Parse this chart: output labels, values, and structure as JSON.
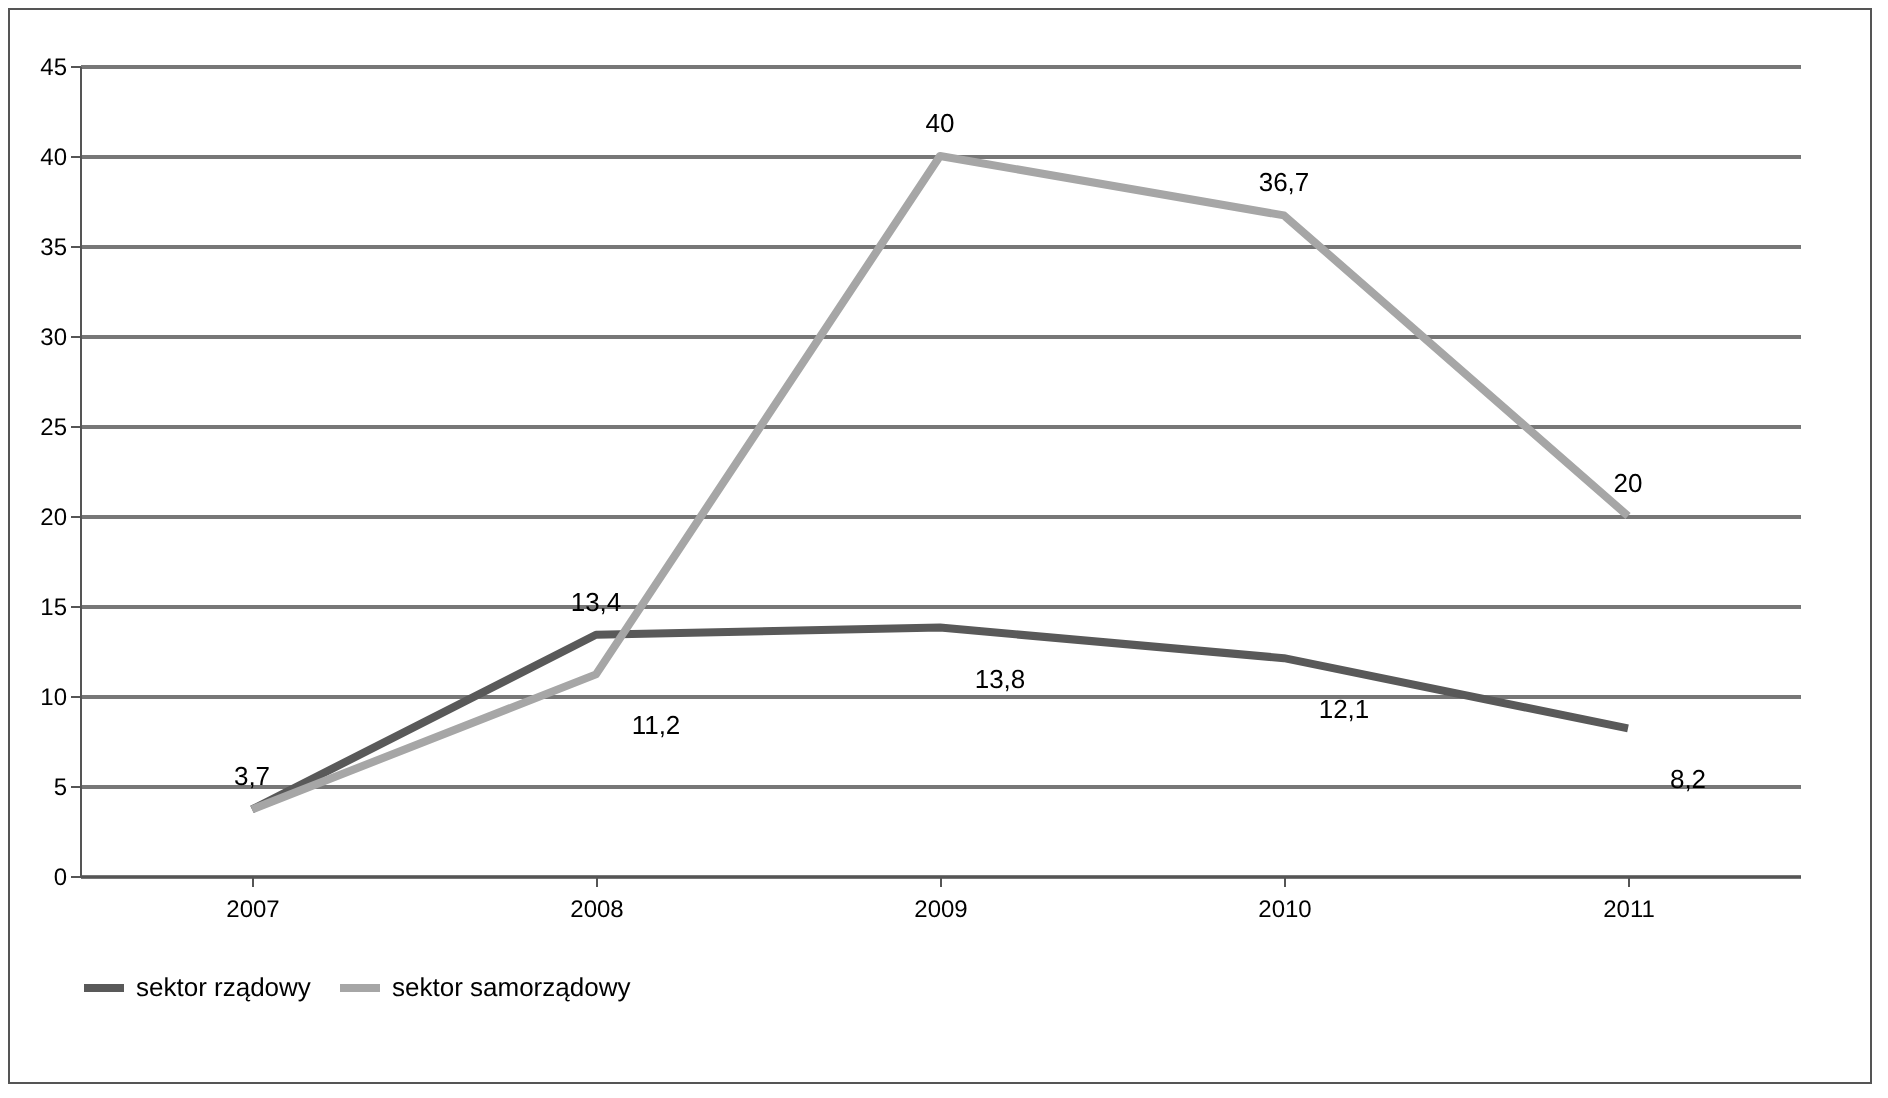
{
  "chart_data": {
    "type": "line",
    "categories": [
      "2007",
      "2008",
      "2009",
      "2010",
      "2011"
    ],
    "series": [
      {
        "name": "sektor rządowy",
        "color": "#595959",
        "values": [
          3.7,
          13.4,
          13.8,
          12.1,
          8.2
        ],
        "value_labels": [
          "3,7",
          "13,4",
          "13,8",
          "12,1",
          "8,2"
        ]
      },
      {
        "name": "sektor samorządowy",
        "color": "#a6a6a6",
        "values": [
          3.7,
          11.2,
          40,
          36.7,
          20
        ],
        "value_labels": [
          null,
          "11,2",
          "40",
          "36,7",
          "20"
        ]
      }
    ],
    "ylim": [
      0,
      45
    ],
    "yticks": [
      0,
      5,
      10,
      15,
      20,
      25,
      30,
      35,
      40,
      45
    ],
    "grid": "y",
    "legend": "bottom",
    "marker": "none",
    "line_style": "solid"
  }
}
